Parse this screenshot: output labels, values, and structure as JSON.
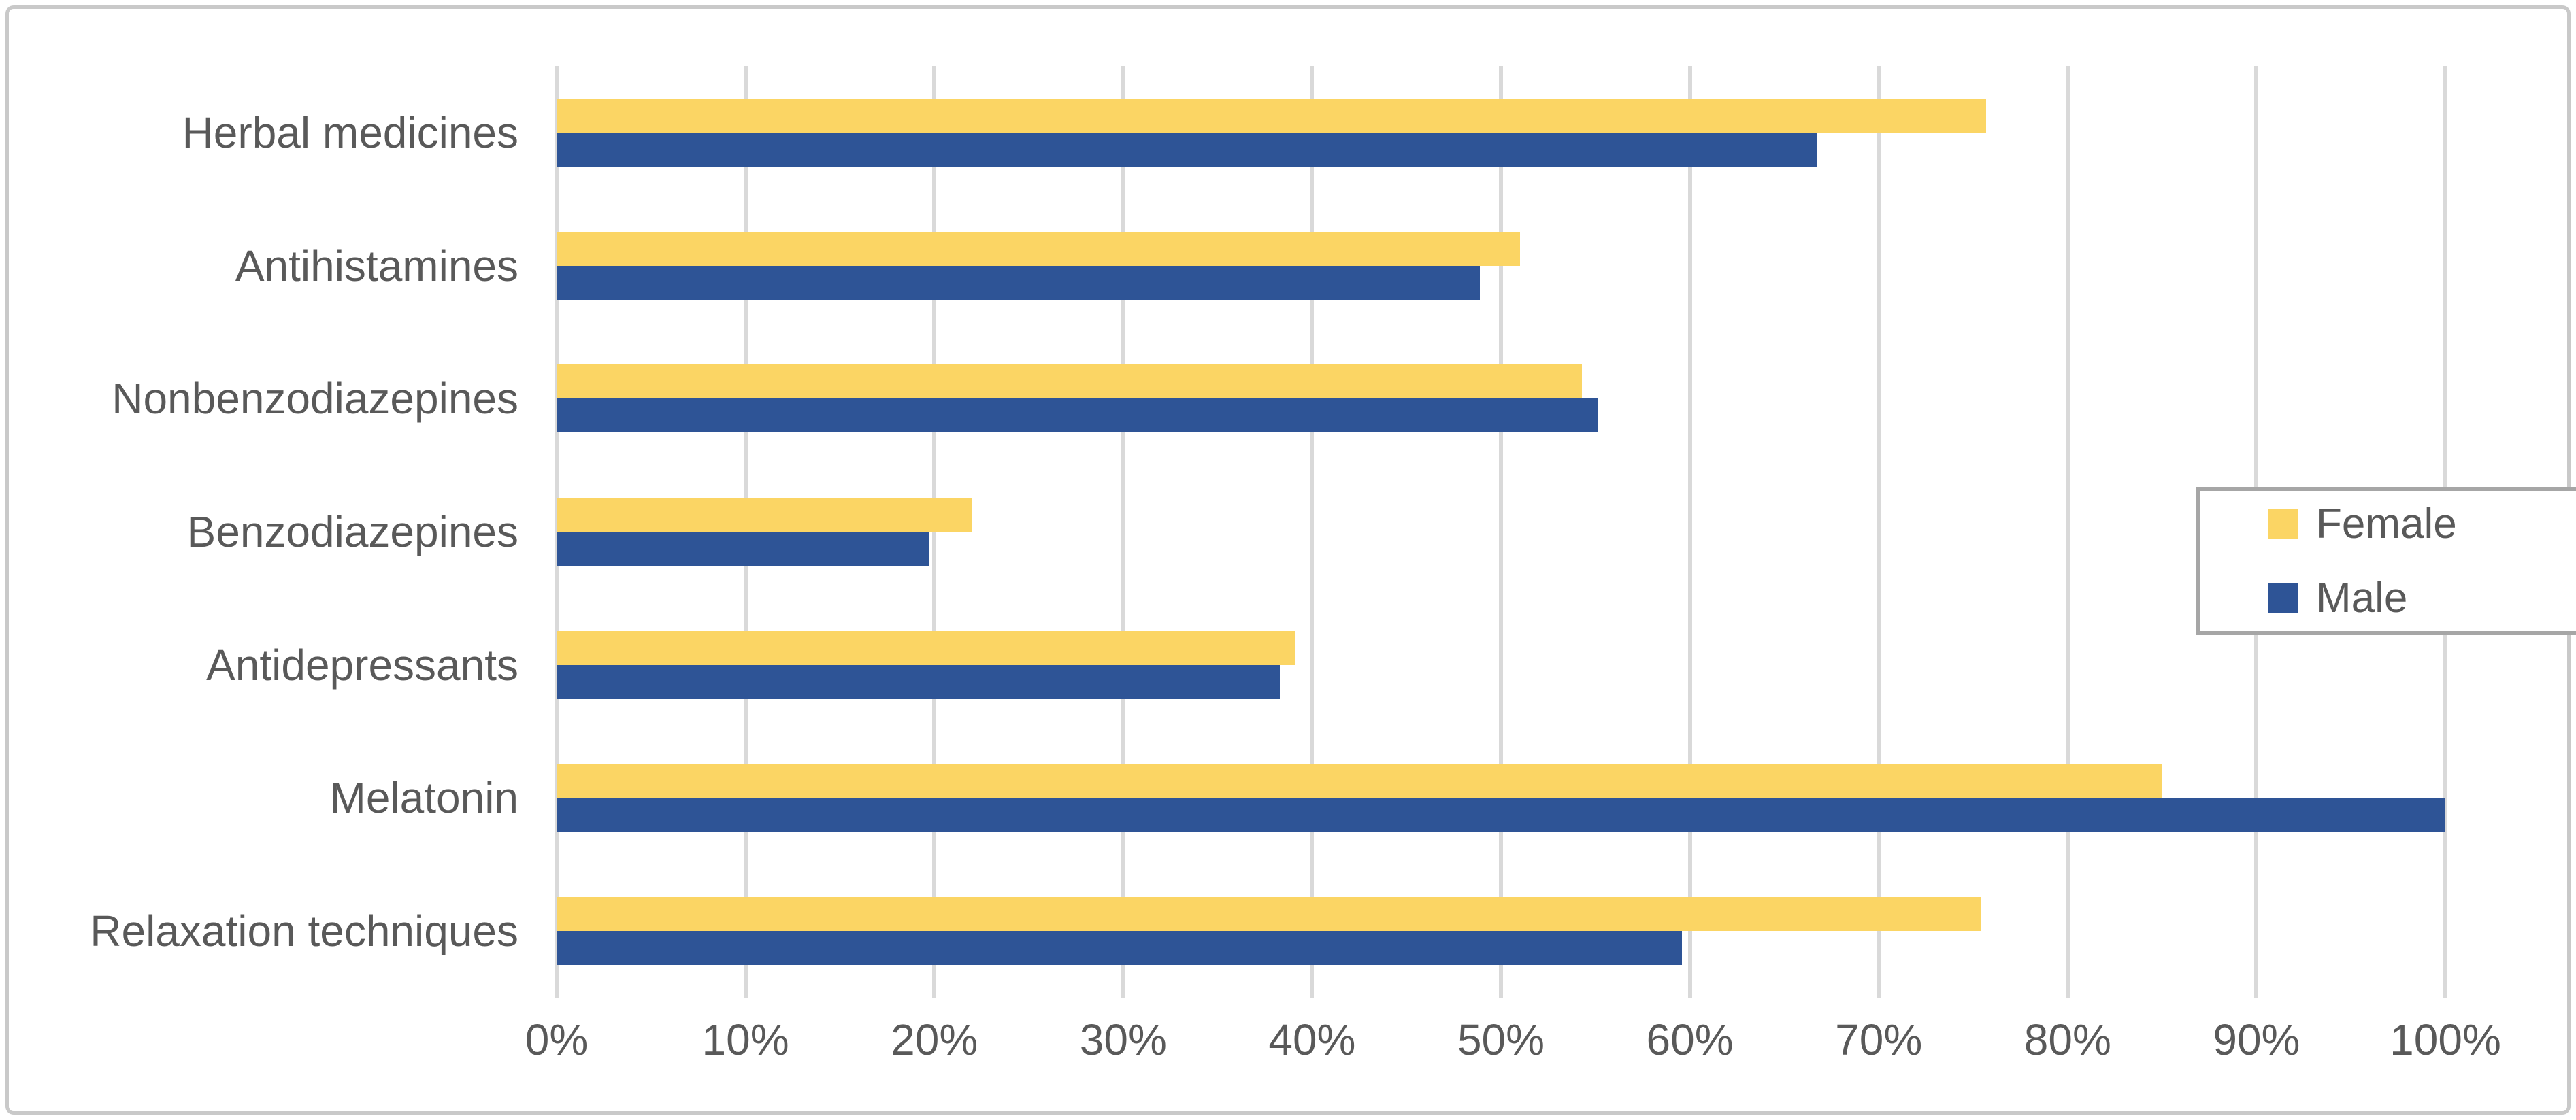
{
  "chart_data": {
    "type": "bar",
    "orientation": "horizontal",
    "title": "",
    "xlabel": "",
    "ylabel": "",
    "grid": true,
    "categories": [
      "Herbal medicines",
      "Antihistamines",
      "Nonbenzodiazepines",
      "Benzodiazepines",
      "Antidepressants",
      "Melatonin",
      "Relaxation techniques"
    ],
    "series": [
      {
        "name": "Female",
        "color": "#FBD564",
        "values": [
          75.7,
          51.0,
          54.3,
          22.0,
          39.1,
          85.0,
          75.4
        ]
      },
      {
        "name": "Male",
        "color": "#2E5496",
        "values": [
          66.7,
          48.9,
          55.1,
          19.7,
          38.3,
          100.0,
          59.6
        ]
      }
    ],
    "x_axis": {
      "min": 0,
      "max": 100,
      "step": 10,
      "tick_labels": [
        "0%",
        "10%",
        "20%",
        "30%",
        "40%",
        "50%",
        "60%",
        "70%",
        "80%",
        "90%",
        "100%"
      ]
    },
    "legend": {
      "position": "right",
      "entries": [
        "Female",
        "Male"
      ]
    }
  },
  "style": {
    "text_color": "#595959",
    "gridline_color": "#D9D9D9",
    "axis_line_color": "#D9D9D9",
    "legend_border_color": "#A6A6A6",
    "outer_border_color": "#C9C9C9",
    "background_color": "#FFFFFF"
  }
}
